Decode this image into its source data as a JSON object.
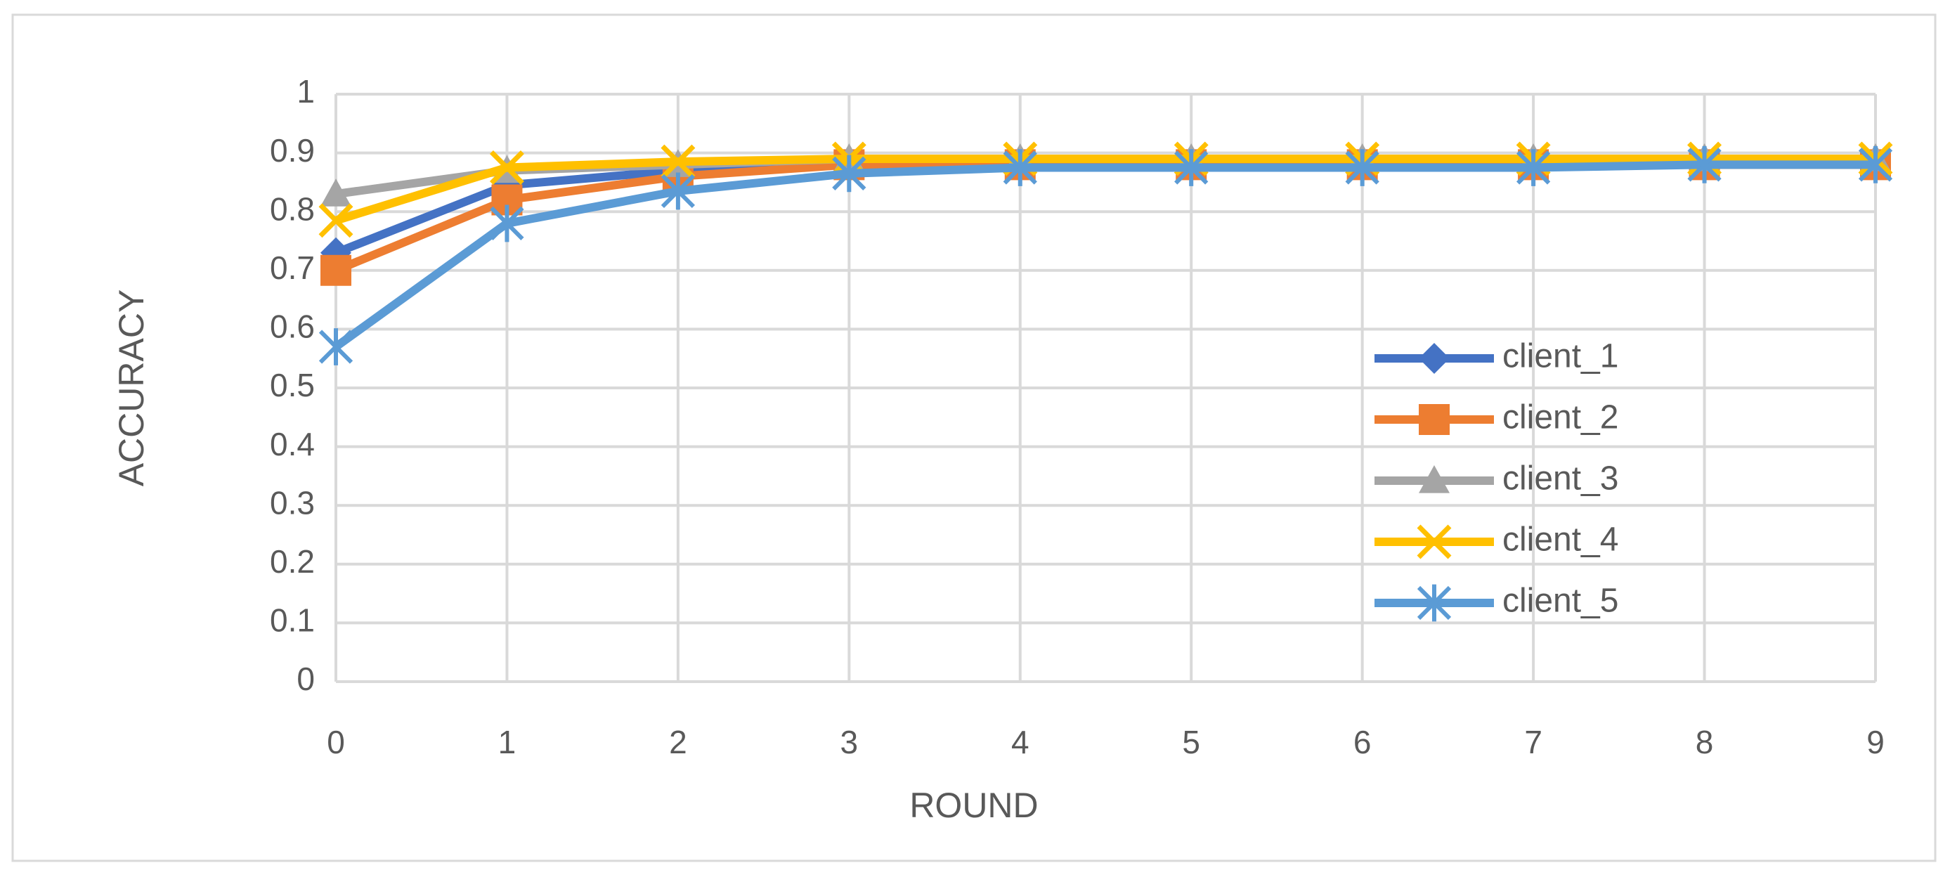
{
  "chart_data": {
    "type": "line",
    "x_label": "ROUND",
    "y_label": "ACCURACY",
    "x": [
      0,
      1,
      2,
      3,
      4,
      5,
      6,
      7,
      8,
      9
    ],
    "xlim": [
      0,
      9
    ],
    "xticks": [
      0,
      1,
      2,
      3,
      4,
      5,
      6,
      7,
      8,
      9
    ],
    "ylim": [
      0,
      1
    ],
    "yticks": [
      0,
      0.1,
      0.2,
      0.3,
      0.4,
      0.5,
      0.6,
      0.7,
      0.8,
      0.9,
      1
    ],
    "grid": true,
    "legend_position": "right",
    "series": [
      {
        "name": "client_1",
        "color": "#4472c4",
        "marker": "diamond",
        "values": [
          0.73,
          0.845,
          0.87,
          0.88,
          0.88,
          0.88,
          0.88,
          0.88,
          0.88,
          0.88
        ]
      },
      {
        "name": "client_2",
        "color": "#ed7d31",
        "marker": "square",
        "values": [
          0.7,
          0.82,
          0.86,
          0.88,
          0.88,
          0.88,
          0.88,
          0.88,
          0.88,
          0.88
        ]
      },
      {
        "name": "client_3",
        "color": "#a5a5a5",
        "marker": "triangle",
        "values": [
          0.83,
          0.87,
          0.88,
          0.89,
          0.89,
          0.89,
          0.89,
          0.89,
          0.89,
          0.89
        ]
      },
      {
        "name": "client_4",
        "color": "#ffc000",
        "marker": "x",
        "values": [
          0.785,
          0.875,
          0.885,
          0.89,
          0.89,
          0.89,
          0.89,
          0.89,
          0.89,
          0.89
        ]
      },
      {
        "name": "client_5",
        "color": "#5b9bd5",
        "marker": "star",
        "values": [
          0.57,
          0.78,
          0.835,
          0.865,
          0.875,
          0.875,
          0.875,
          0.875,
          0.88,
          0.88
        ]
      }
    ]
  }
}
